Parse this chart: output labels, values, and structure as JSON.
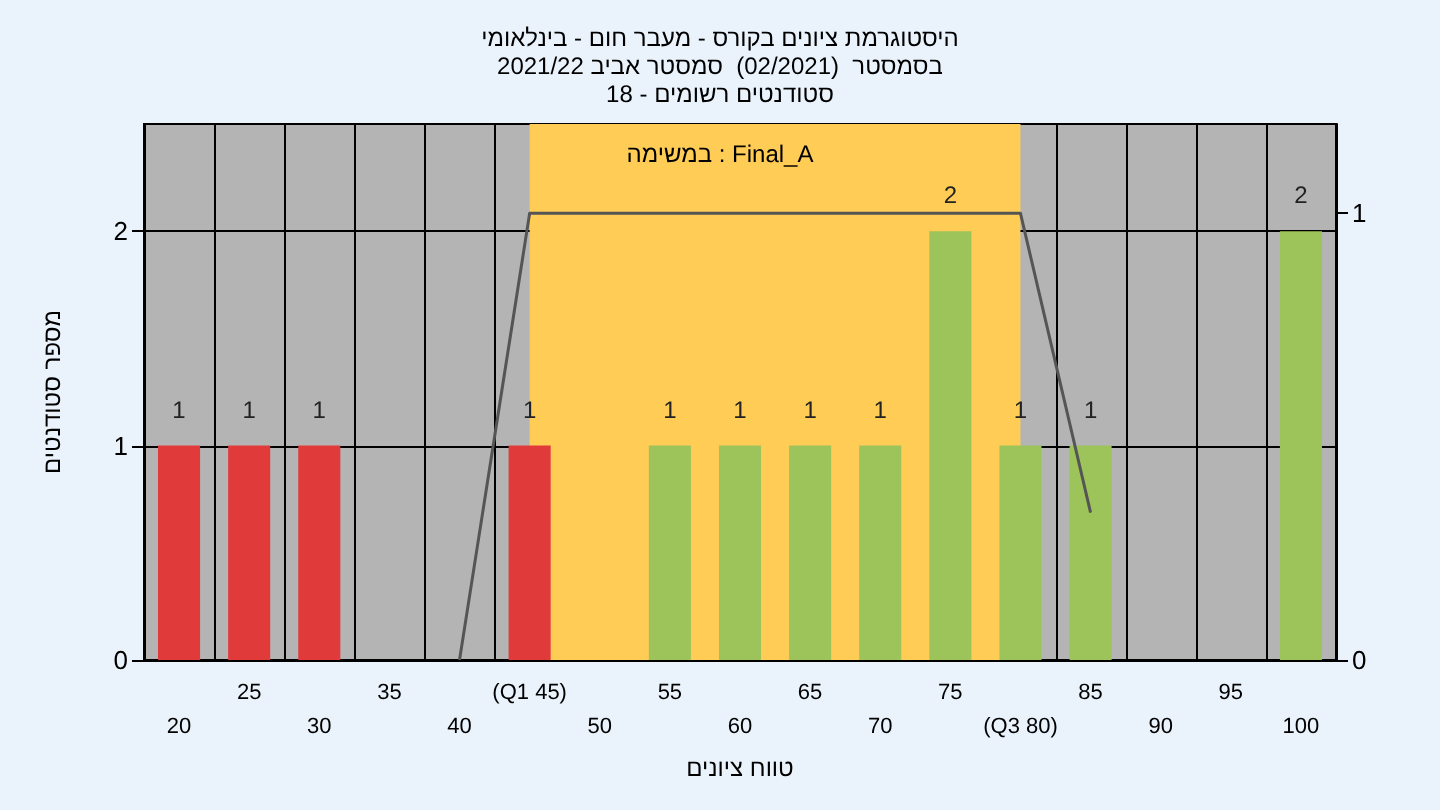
{
  "chart_data": {
    "type": "bar",
    "title": "היסטוגרמת ציונים בקורס - מעבר חום - בינלאומי",
    "subtitle": "בסמסטר  (02/2021)  סמסטר אביב 2021/22\nסטודנטים רשומים - 18",
    "xlabel": "טווח ציונים",
    "ylabel": "מספר סטודנטים",
    "annotations": [
      "במשימה : Final_A"
    ],
    "categories": [
      "20",
      "25",
      "30",
      "35",
      "40",
      "(Q1 45)",
      "50",
      "55",
      "60",
      "65",
      "70",
      "75",
      "(Q3 80)",
      "85",
      "90",
      "95",
      "100"
    ],
    "values": [
      1,
      1,
      1,
      0,
      0,
      1,
      0,
      1,
      1,
      1,
      1,
      2,
      1,
      1,
      0,
      0,
      2
    ],
    "colors": [
      "#e03a3a",
      "#e03a3a",
      "#e03a3a",
      "#e03a3a",
      "#e03a3a",
      "#e03a3a",
      "#9cc45a",
      "#9cc45a",
      "#9cc45a",
      "#9cc45a",
      "#9cc45a",
      "#9cc45a",
      "#9cc45a",
      "#9cc45a",
      "#9cc45a",
      "#9cc45a",
      "#9cc45a"
    ],
    "series": [
      {
        "type": "line",
        "axis": "y2",
        "color": "#555555",
        "values": [
          null,
          null,
          null,
          null,
          0,
          1,
          null,
          null,
          null,
          null,
          null,
          null,
          1,
          0.33,
          null,
          null,
          null
        ]
      }
    ],
    "value_labels": [
      "1",
      "1",
      "1",
      null,
      null,
      "1",
      null,
      "1",
      "1",
      "1",
      "1",
      "2",
      "1",
      "1",
      null,
      null,
      "2"
    ],
    "ylim": [
      0,
      2.5
    ],
    "yticks": [
      0,
      1,
      2
    ],
    "y2lim": [
      0,
      1.2
    ],
    "y2ticks": [
      0,
      1
    ],
    "bands": [
      {
        "axis": "x",
        "from": "(Q1 45)",
        "to": "(Q3 80)",
        "color": "#ffcc55"
      }
    ],
    "grid": true,
    "marker": "none",
    "line_style": "solid"
  }
}
